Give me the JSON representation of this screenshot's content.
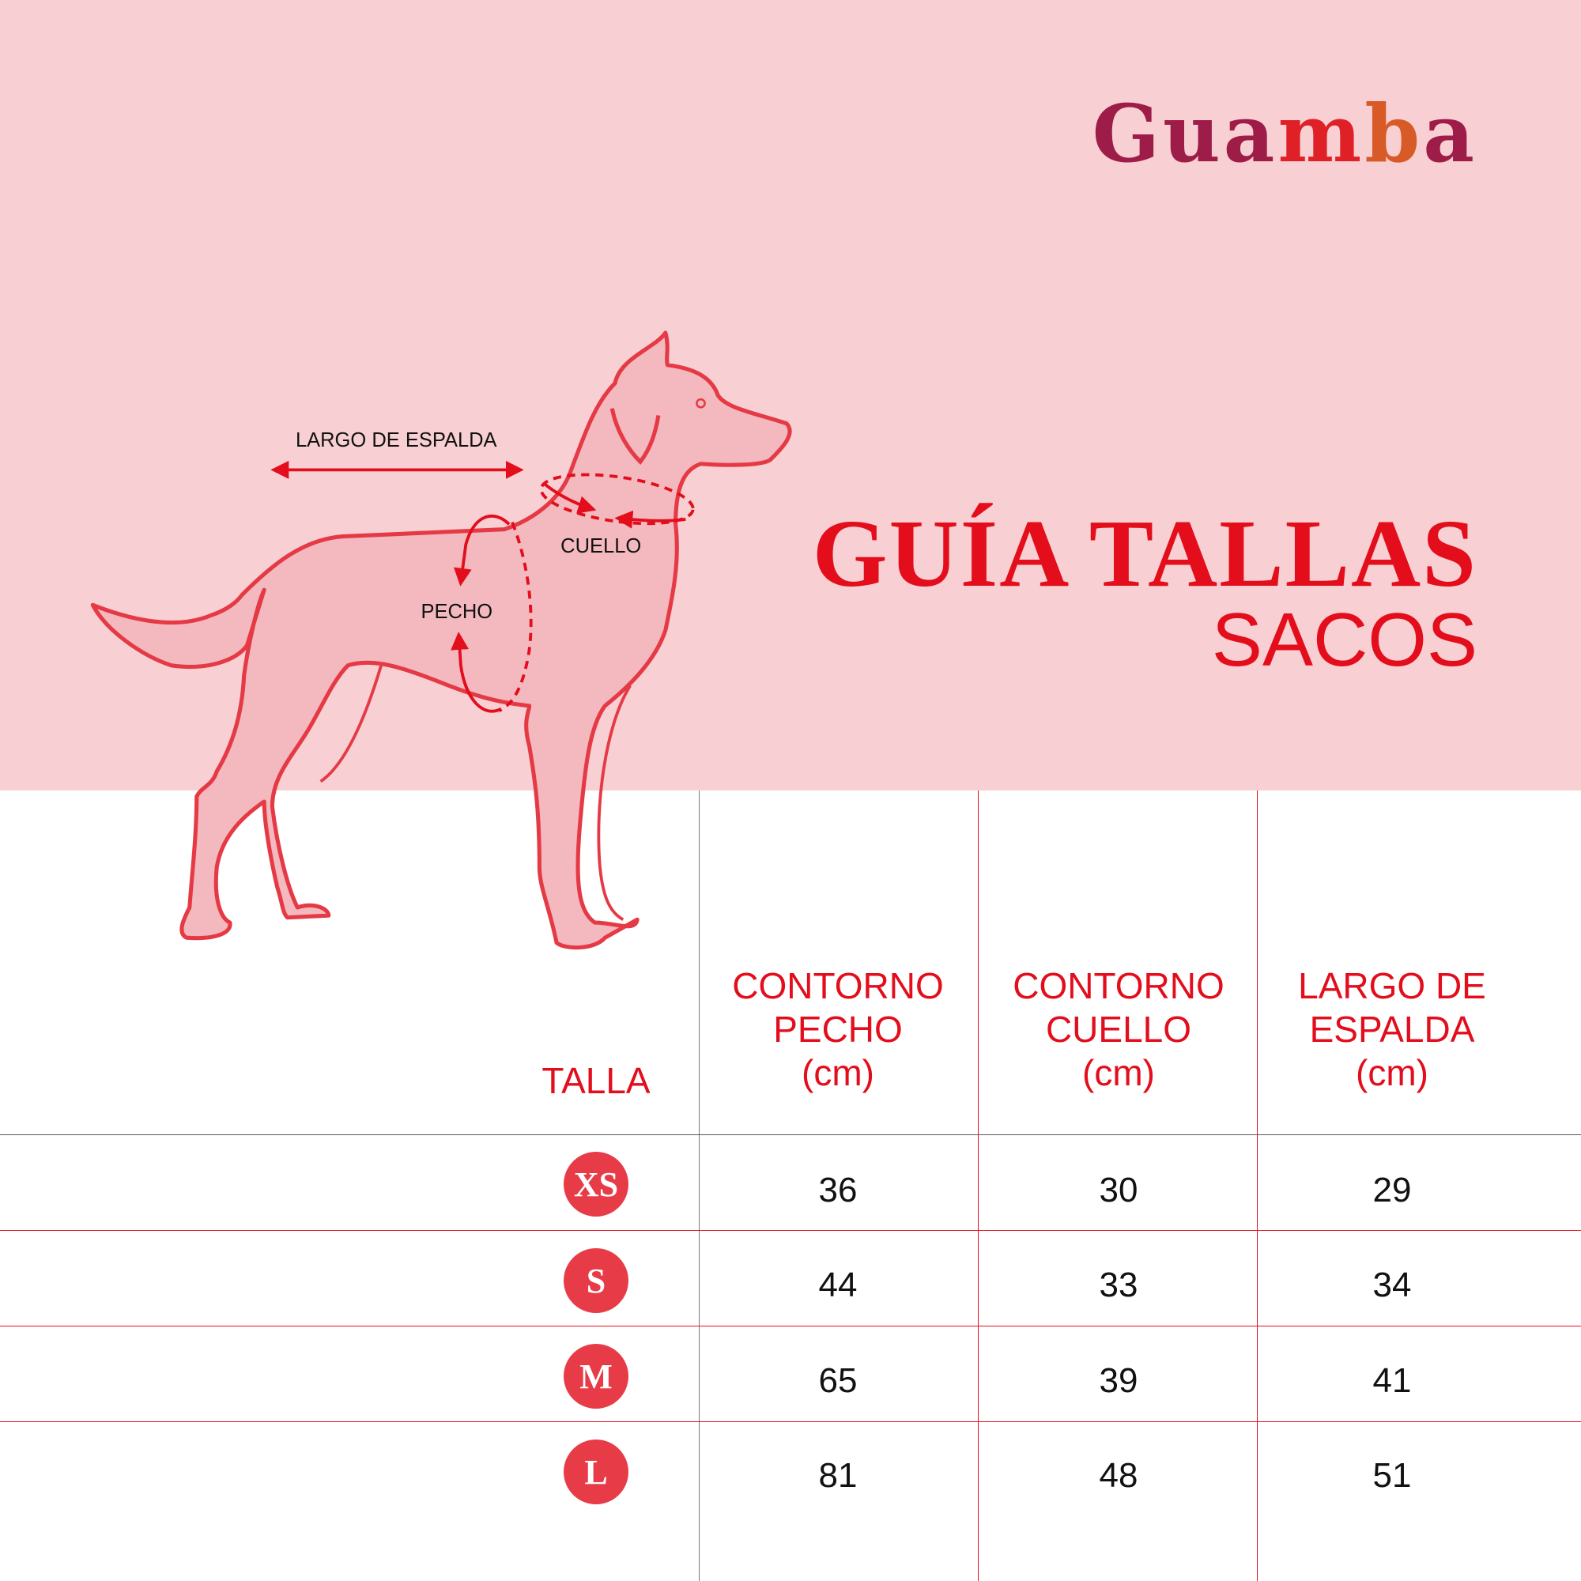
{
  "brand": {
    "logo_text": "Guamba",
    "logo_parts": [
      "Gua",
      "m",
      "b",
      "a"
    ]
  },
  "title": "GUÍA TALLAS",
  "subtitle": "SACOS",
  "diagram": {
    "back_label": "LARGO DE ESPALDA",
    "neck_label": "CUELLO",
    "chest_label": "PECHO"
  },
  "table": {
    "headers": [
      {
        "lines": [
          "TALLA"
        ]
      },
      {
        "lines": [
          "CONTORNO",
          "PECHO",
          "(cm)"
        ]
      },
      {
        "lines": [
          "CONTORNO",
          "CUELLO",
          "(cm)"
        ]
      },
      {
        "lines": [
          "LARGO DE",
          "ESPALDA",
          "(cm)"
        ]
      }
    ],
    "rows": [
      {
        "size": "XS",
        "chest": "36",
        "neck": "30",
        "back": "29"
      },
      {
        "size": "S",
        "chest": "44",
        "neck": "33",
        "back": "34"
      },
      {
        "size": "M",
        "chest": "65",
        "neck": "39",
        "back": "41"
      },
      {
        "size": "L",
        "chest": "81",
        "neck": "48",
        "back": "51"
      }
    ]
  },
  "colors": {
    "accent": "#e30d1c",
    "background": "#f8cfd2",
    "badge": "#e73c47",
    "logo_main": "#9e1c48",
    "logo_dog": "#e02027",
    "logo_cat": "#d75a27"
  }
}
